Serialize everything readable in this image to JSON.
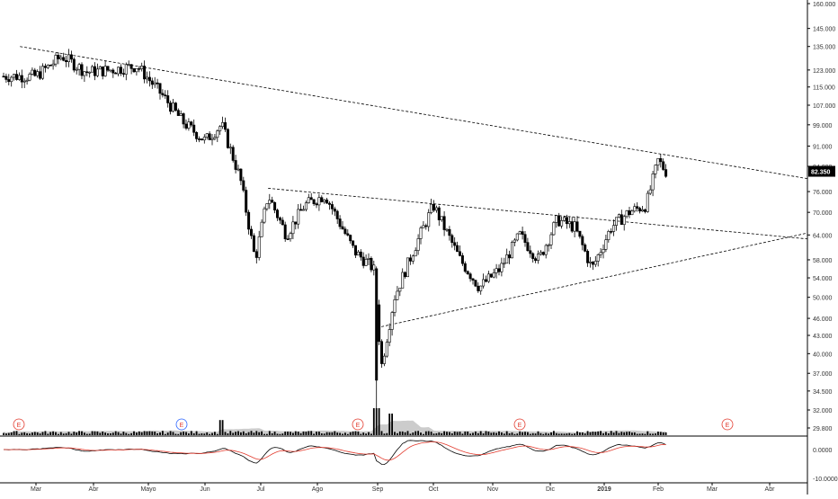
{
  "chart_data": {
    "type": "candlestick",
    "price_scale": "log",
    "price_ticks": [
      "160.000",
      "145.000",
      "135.000",
      "123.000",
      "115.000",
      "107.000",
      "99.000",
      "91.000",
      "84.000",
      "76.000",
      "70.000",
      "64.000",
      "58.000",
      "54.000",
      "50.000",
      "46.000",
      "43.000",
      "40.000",
      "37.000",
      "34.500",
      "32.000",
      "29.800"
    ],
    "last_price": "82.350",
    "oscillator_ticks": [
      "0.0000",
      "-10.0000"
    ],
    "month_labels": [
      "Mar",
      "Abr",
      "Mayo",
      "Jun",
      "Jul",
      "Ago",
      "Sep",
      "Oct",
      "Nov",
      "Dic",
      "2019",
      "Feb",
      "Mar",
      "Abr"
    ],
    "earnings_markers": [
      "E",
      "E",
      "E",
      "E",
      "E"
    ],
    "candles": [
      {
        "date": "2018-03",
        "close": 120
      },
      {
        "date": "2018-03-15",
        "close": 130
      },
      {
        "date": "2018-03-28",
        "close": 122
      },
      {
        "date": "2018-04-10",
        "close": 123
      },
      {
        "date": "2018-04-25",
        "close": 125
      },
      {
        "date": "2018-05-10",
        "close": 110
      },
      {
        "date": "2018-05-20",
        "close": 100
      },
      {
        "date": "2018-06-01",
        "close": 93
      },
      {
        "date": "2018-06-10",
        "close": 99
      },
      {
        "date": "2018-06-20",
        "close": 80
      },
      {
        "date": "2018-06-28",
        "close": 58
      },
      {
        "date": "2018-07-05",
        "close": 75
      },
      {
        "date": "2018-07-15",
        "close": 64
      },
      {
        "date": "2018-07-25",
        "close": 72
      },
      {
        "date": "2018-08-05",
        "close": 75
      },
      {
        "date": "2018-08-20",
        "close": 60
      },
      {
        "date": "2018-08-30",
        "close": 56
      },
      {
        "date": "2018-09-03",
        "close": 38
      },
      {
        "date": "2018-09-10",
        "close": 50
      },
      {
        "date": "2018-09-20",
        "close": 60
      },
      {
        "date": "2018-10-01",
        "close": 72
      },
      {
        "date": "2018-10-15",
        "close": 58
      },
      {
        "date": "2018-10-25",
        "close": 52
      },
      {
        "date": "2018-11-05",
        "close": 56
      },
      {
        "date": "2018-11-15",
        "close": 64
      },
      {
        "date": "2018-11-25",
        "close": 58
      },
      {
        "date": "2018-12-05",
        "close": 68
      },
      {
        "date": "2018-12-15",
        "close": 66
      },
      {
        "date": "2018-12-25",
        "close": 56
      },
      {
        "date": "2019-01-05",
        "close": 66
      },
      {
        "date": "2019-01-15",
        "close": 70
      },
      {
        "date": "2019-01-25",
        "close": 72
      },
      {
        "date": "2019-02-01",
        "close": 86
      },
      {
        "date": "2019-02-05",
        "close": 82.35
      }
    ],
    "trendlines": [
      {
        "name": "upper-resistance",
        "from": {
          "date": "2018-02-25",
          "price": 135
        },
        "to": {
          "date": "2019-04-25",
          "price": 80
        }
      },
      {
        "name": "mid-resistance",
        "from": {
          "date": "2018-07-05",
          "price": 77
        },
        "to": {
          "date": "2019-04-25",
          "price": 63
        }
      },
      {
        "name": "support",
        "from": {
          "date": "2018-09-03",
          "price": 44.5
        },
        "to": {
          "date": "2019-04-25",
          "price": 64.5
        }
      }
    ],
    "grid": false
  }
}
